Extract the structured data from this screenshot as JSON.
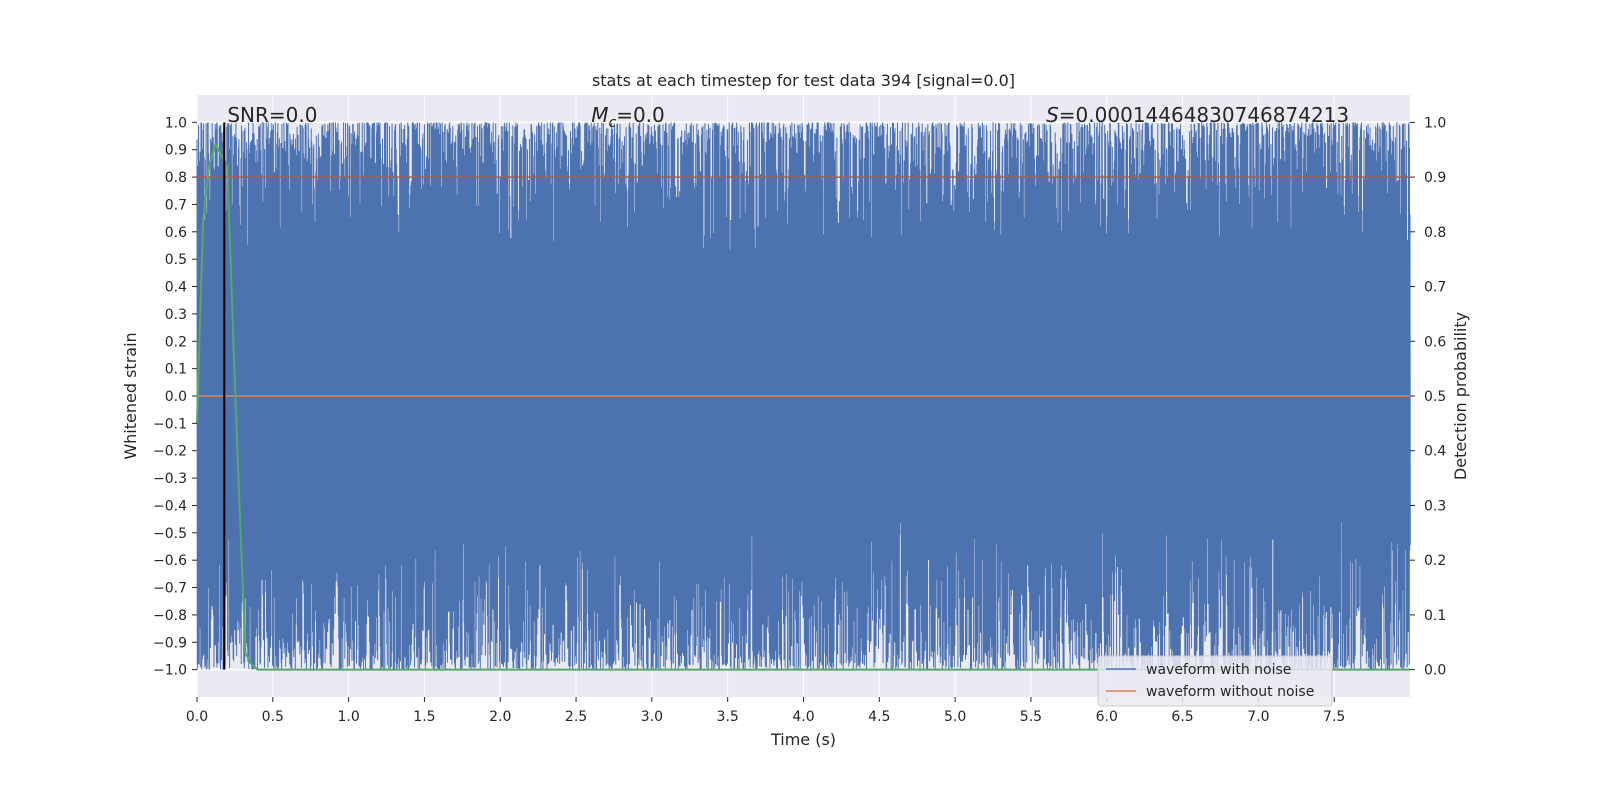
{
  "chart_data": {
    "type": "line",
    "title": "stats at each timestep for test data 394 [signal=0.0]",
    "xlabel": "Time (s)",
    "ylabel": "Whitened strain",
    "y2label": "Detection probability",
    "xlim": [
      0.0,
      8.0
    ],
    "ylim": [
      -1.1,
      1.1
    ],
    "y2lim": [
      -0.05,
      1.05
    ],
    "x_ticks": [
      "0.0",
      "0.5",
      "1.0",
      "1.5",
      "2.0",
      "2.5",
      "3.0",
      "3.5",
      "4.0",
      "4.5",
      "5.0",
      "5.5",
      "6.0",
      "6.5",
      "7.0",
      "7.5"
    ],
    "y_ticks": [
      "1.0",
      "0.9",
      "0.8",
      "0.7",
      "0.6",
      "0.5",
      "0.4",
      "0.3",
      "0.2",
      "0.1",
      "0.0",
      "−0.1",
      "−0.2",
      "−0.3",
      "−0.4",
      "−0.5",
      "−0.6",
      "−0.7",
      "−0.8",
      "−0.9",
      "−1.0"
    ],
    "y2_ticks": [
      "1.0",
      "0.9",
      "0.8",
      "0.7",
      "0.6",
      "0.5",
      "0.4",
      "0.3",
      "0.2",
      "0.1",
      "0.0"
    ],
    "grid": true,
    "legend_position": "lower-right",
    "annotations": {
      "snr": "SNR=0.0",
      "mc_symbol": "M",
      "mc_sub": "c",
      "mc_value": "=0.0",
      "s_symbol": "S",
      "s_value": "=0.00014464830746874213"
    },
    "series": [
      {
        "name": "waveform with noise",
        "axis": "left",
        "color": "#4c72b0",
        "description_range": [
          -1.0,
          1.0
        ]
      },
      {
        "name": "waveform without noise",
        "axis": "left",
        "color": "#dd8452",
        "x": [
          0.0,
          8.0
        ],
        "y": [
          0.0,
          0.0
        ]
      },
      {
        "axis": "right",
        "color": "#55a868",
        "x": [
          0.0,
          0.04,
          0.08,
          0.12,
          0.16,
          0.2,
          0.24,
          0.28,
          0.32,
          0.36,
          0.4,
          0.8,
          8.0
        ],
        "y": [
          0.45,
          0.82,
          0.92,
          0.96,
          0.94,
          0.92,
          0.6,
          0.3,
          0.03,
          0.01,
          0.0,
          0.0,
          0.0
        ]
      }
    ],
    "threshold_line": {
      "axis": "right",
      "y": 0.9,
      "color": "#c44e52"
    },
    "marker_line": {
      "x": 0.18,
      "color": "#000000"
    }
  }
}
